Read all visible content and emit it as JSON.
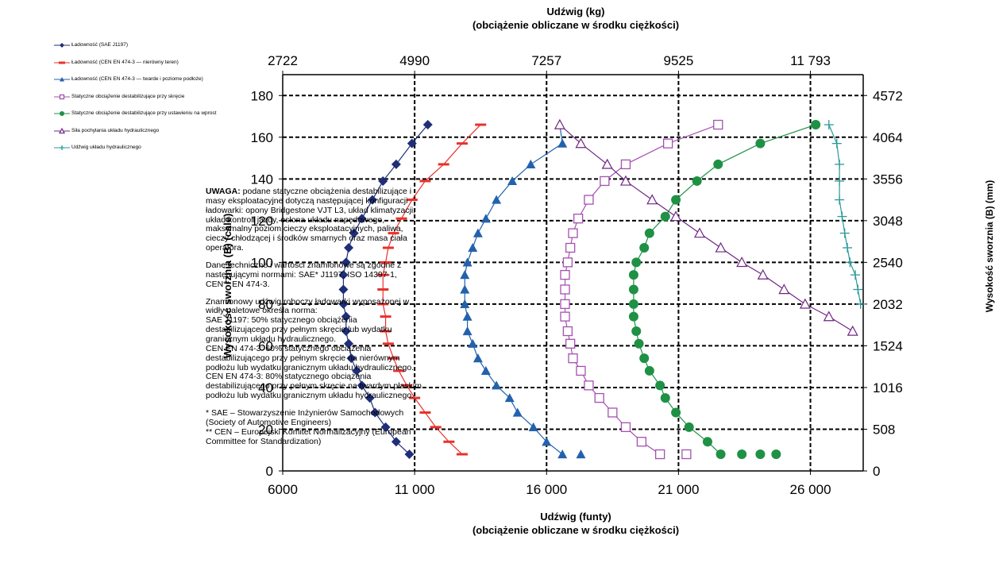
{
  "chart_data": {
    "type": "scatter",
    "title": "Udźwig (kg)",
    "subtitle": "(obciążenie obliczane w środku ciężkości)",
    "xlabel": "Udźwig (funty)",
    "xlabel_sub": "(obciążenie obliczane w środku ciężkości)",
    "ylabel": "Wysokość sworznia (B) (cale)",
    "ylabel_right": "Wysokość sworznia (B) (mm)",
    "xlim": [
      6000,
      28000
    ],
    "ylim": [
      0,
      190
    ],
    "x_ticks": [
      6000,
      11000,
      16000,
      21000,
      26000
    ],
    "x_tick_labels": [
      "6000",
      "11 000",
      "16 000",
      "21 000",
      "26 000"
    ],
    "x_top_ticks": [
      6000,
      11000,
      16000,
      21000,
      26000
    ],
    "x_top_tick_labels": [
      "2722",
      "4990",
      "7257",
      "9525",
      "11 793"
    ],
    "y_ticks": [
      0,
      20,
      40,
      60,
      80,
      100,
      120,
      140,
      160,
      180
    ],
    "y_tick_labels": [
      "0",
      "20",
      "40",
      "60",
      "80",
      "100",
      "120",
      "140",
      "160",
      "180"
    ],
    "y_right_ticks": [
      0,
      20,
      40,
      60,
      80,
      100,
      120,
      140,
      160,
      180
    ],
    "y_right_tick_labels": [
      "0",
      "508",
      "1016",
      "1524",
      "2032",
      "2540",
      "3048",
      "3556",
      "4064",
      "4572"
    ],
    "grid": "dashed",
    "legend_position": "top-left",
    "series": [
      {
        "name": "Ładowność (SAE J1197)",
        "color": "#1f2e78",
        "marker": "diamond",
        "points": [
          [
            11500,
            166
          ],
          [
            10900,
            157
          ],
          [
            10300,
            147
          ],
          [
            9800,
            139
          ],
          [
            9400,
            130
          ],
          [
            9000,
            121
          ],
          [
            8700,
            114
          ],
          [
            8500,
            107
          ],
          [
            8400,
            100
          ],
          [
            8300,
            94
          ],
          [
            8300,
            87
          ],
          [
            8300,
            80
          ],
          [
            8400,
            74
          ],
          [
            8400,
            67
          ],
          [
            8500,
            61
          ],
          [
            8600,
            54
          ],
          [
            8800,
            48
          ],
          [
            9000,
            41
          ],
          [
            9300,
            35
          ],
          [
            9500,
            28
          ],
          [
            9900,
            21
          ],
          [
            10300,
            14
          ],
          [
            10800,
            8
          ]
        ]
      },
      {
        "name": "Ładowność (CEN EN 474-3 — nierówny teren)",
        "color": "#e8312c",
        "marker": "dash",
        "points": [
          [
            13500,
            166
          ],
          [
            12800,
            157
          ],
          [
            12100,
            147
          ],
          [
            11400,
            139
          ],
          [
            10900,
            130
          ],
          [
            10500,
            121
          ],
          [
            10200,
            114
          ],
          [
            10000,
            107
          ],
          [
            9900,
            100
          ],
          [
            9800,
            94
          ],
          [
            9800,
            87
          ],
          [
            9800,
            80
          ],
          [
            9900,
            74
          ],
          [
            9900,
            67
          ],
          [
            10000,
            61
          ],
          [
            10200,
            54
          ],
          [
            10400,
            48
          ],
          [
            10700,
            41
          ],
          [
            11000,
            35
          ],
          [
            11400,
            28
          ],
          [
            11800,
            21
          ],
          [
            12300,
            14
          ],
          [
            12800,
            8
          ]
        ]
      },
      {
        "name": "Ładowność (CEN EN 474-3 — twarde i poziome podłoże)",
        "color": "#2262ad",
        "marker": "triangle",
        "points": [
          [
            16500,
            166
          ],
          [
            16600,
            157
          ],
          [
            15400,
            147
          ],
          [
            14700,
            139
          ],
          [
            14100,
            130
          ],
          [
            13700,
            121
          ],
          [
            13400,
            114
          ],
          [
            13200,
            107
          ],
          [
            13000,
            100
          ],
          [
            12900,
            94
          ],
          [
            12900,
            87
          ],
          [
            12900,
            80
          ],
          [
            13000,
            74
          ],
          [
            13000,
            67
          ],
          [
            13200,
            61
          ],
          [
            13400,
            54
          ],
          [
            13700,
            48
          ],
          [
            14100,
            41
          ],
          [
            14600,
            35
          ],
          [
            14900,
            28
          ],
          [
            15500,
            21
          ],
          [
            16000,
            14
          ],
          [
            16600,
            8
          ],
          [
            17300,
            8
          ]
        ]
      },
      {
        "name": "Statyczne obciążenie destabilizujące przy skręcie",
        "color": "#a551b0",
        "marker": "square",
        "points": [
          [
            22500,
            166
          ],
          [
            20600,
            157
          ],
          [
            19000,
            147
          ],
          [
            18200,
            139
          ],
          [
            17600,
            130
          ],
          [
            17200,
            121
          ],
          [
            17000,
            114
          ],
          [
            16900,
            107
          ],
          [
            16800,
            100
          ],
          [
            16700,
            94
          ],
          [
            16700,
            87
          ],
          [
            16700,
            80
          ],
          [
            16700,
            74
          ],
          [
            16800,
            67
          ],
          [
            16900,
            61
          ],
          [
            17000,
            54
          ],
          [
            17300,
            48
          ],
          [
            17600,
            41
          ],
          [
            18000,
            35
          ],
          [
            18500,
            28
          ],
          [
            19000,
            21
          ],
          [
            19600,
            14
          ],
          [
            20300,
            8
          ],
          [
            21300,
            8
          ]
        ]
      },
      {
        "name": "Statyczne obciążenie destabilizujące przy ustawieniu na wprost",
        "color": "#1e9145",
        "marker": "circle",
        "points": [
          [
            26200,
            166
          ],
          [
            24100,
            157
          ],
          [
            22500,
            147
          ],
          [
            21700,
            139
          ],
          [
            20900,
            130
          ],
          [
            20500,
            122
          ],
          [
            19900,
            114
          ],
          [
            19700,
            107
          ],
          [
            19400,
            100
          ],
          [
            19300,
            94
          ],
          [
            19300,
            87
          ],
          [
            19300,
            80
          ],
          [
            19300,
            74
          ],
          [
            19400,
            67
          ],
          [
            19500,
            61
          ],
          [
            19700,
            54
          ],
          [
            19900,
            48
          ],
          [
            20300,
            41
          ],
          [
            20500,
            35
          ],
          [
            20900,
            28
          ],
          [
            21400,
            21
          ],
          [
            22100,
            14
          ],
          [
            22600,
            8
          ],
          [
            23400,
            8
          ],
          [
            24100,
            8
          ],
          [
            24700,
            8
          ]
        ]
      },
      {
        "name": "Siła pochylania układu hydraulicznego",
        "color": "#6e2683",
        "marker": "triangle-open",
        "points": [
          [
            16500,
            166
          ],
          [
            17300,
            157
          ],
          [
            18300,
            147
          ],
          [
            19000,
            139
          ],
          [
            20000,
            130
          ],
          [
            20900,
            122
          ],
          [
            21800,
            114
          ],
          [
            22600,
            107
          ],
          [
            23400,
            100
          ],
          [
            24200,
            94
          ],
          [
            25000,
            87
          ],
          [
            25800,
            80
          ],
          [
            26700,
            74
          ],
          [
            27600,
            67
          ]
        ]
      },
      {
        "name": "Udźwig układu hydraulicznego",
        "color": "#2a9998",
        "marker": "plus",
        "points": [
          [
            26700,
            166
          ],
          [
            27000,
            157
          ],
          [
            27100,
            147
          ],
          [
            27100,
            139
          ],
          [
            27100,
            130
          ],
          [
            27200,
            122
          ],
          [
            27300,
            114
          ],
          [
            27400,
            107
          ],
          [
            27500,
            100
          ],
          [
            27700,
            94
          ],
          [
            27800,
            87
          ],
          [
            27900,
            80
          ]
        ]
      }
    ]
  },
  "note": {
    "warning_bold": "UWAGA:",
    "warning_text": " podane statyczne obciążenia destabilizujące i masy eksploatacyjne dotyczą następującej konfiguracji ładowarki: opony Bridgestone VJT L3, układ klimatyzacji, układ kontroli jazdy, osłona układu napędowego, maksymalny poziom cieczy eksploatacyjnych, paliwa, cieczy chłodzącej i środków smarnych oraz masa ciała operatora.",
    "standards": "Dane techniczne i wartości znamionowe są zgodne z następującymi normami: SAE* J1197, ISO 14397-1, CEN** EN 474-3.",
    "rated_intro": "Znamionowy udźwig roboczy ładowarki wyposażonej w widły paletowe określa norma:",
    "rated_sae": "SAE J1197: 50% statycznego obciążenia destabilizującego przy pełnym skręcie lub wydatku granicznym układu hydraulicznego.",
    "rated_cen_uneven": "CEN EN 474-3: 60% statycznego obciążenia destabilizującego przy pełnym skręcie na nierównym podłożu lub wydatku granicznym układu hydraulicznego.",
    "rated_cen_firm": "CEN EN 474-3: 80% statycznego obciążenia destabilizującego przy pełnym skręcie na twardym płaskim podłożu lub wydatku granicznym układu hydraulicznego.",
    "footnote_sae": "* SAE – Stowarzyszenie Inżynierów Samochodowych (Society of Automotive Engineers)",
    "footnote_cen": "** CEN – Europejski Komitet Normalizacyjny (European Committee for Standardization)"
  }
}
